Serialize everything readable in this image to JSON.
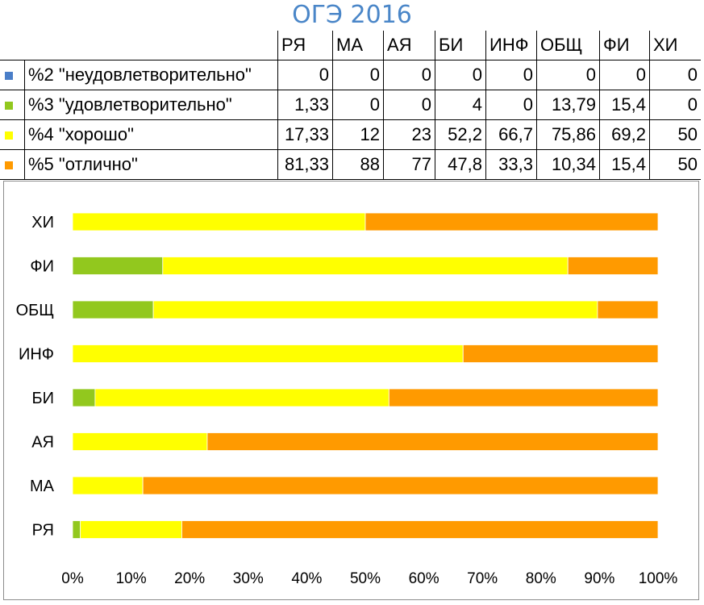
{
  "title": "ОГЭ 2016",
  "table": {
    "columns": [
      "РЯ",
      "МА",
      "АЯ",
      "БИ",
      "ИНФ",
      "ОБЩ",
      "ФИ",
      "ХИ"
    ],
    "rows": [
      {
        "label": "%2 \"неудовлетворительно\"",
        "color": "#4a7ec8",
        "cells": [
          "0",
          "0",
          "0",
          "0",
          "0",
          "0",
          "0",
          "0"
        ]
      },
      {
        "label": "%3 \"удовлетворительно\"",
        "color": "#92c81e",
        "cells": [
          "1,33",
          "0",
          "0",
          "4",
          "0",
          "13,79",
          "15,4",
          "0"
        ]
      },
      {
        "label": "%4 \"хорошо\"",
        "color": "#ffff00",
        "cells": [
          "17,33",
          "12",
          "23",
          "52,2",
          "66,7",
          "75,86",
          "69,2",
          "50"
        ]
      },
      {
        "label": "%5 \"отлично\"",
        "color": "#ff9a00",
        "cells": [
          "81,33",
          "88",
          "77",
          "47,8",
          "33,3",
          "10,34",
          "15,4",
          "50"
        ]
      }
    ]
  },
  "chart_data": {
    "type": "bar",
    "orientation": "horizontal",
    "stacked": "percent",
    "title": "ОГЭ 2016",
    "categories": [
      "РЯ",
      "МА",
      "АЯ",
      "БИ",
      "ИНФ",
      "ОБЩ",
      "ФИ",
      "ХИ"
    ],
    "series": [
      {
        "name": "%2 \"неудовлетворительно\"",
        "color": "#4a7ec8",
        "values": [
          0,
          0,
          0,
          0,
          0,
          0,
          0,
          0
        ]
      },
      {
        "name": "%3 \"удовлетворительно\"",
        "color": "#92c81e",
        "values": [
          1.33,
          0,
          0,
          4,
          0,
          13.79,
          15.4,
          0
        ]
      },
      {
        "name": "%4 \"хорошо\"",
        "color": "#ffff00",
        "values": [
          17.33,
          12,
          23,
          52.2,
          66.7,
          75.86,
          69.2,
          50
        ]
      },
      {
        "name": "%5 \"отлично\"",
        "color": "#ff9a00",
        "values": [
          81.33,
          88,
          77,
          47.8,
          33.3,
          10.34,
          15.4,
          50
        ]
      }
    ],
    "xlim": [
      0,
      100
    ],
    "x_ticks": [
      "0%",
      "10%",
      "20%",
      "30%",
      "40%",
      "50%",
      "60%",
      "70%",
      "80%",
      "90%",
      "100%"
    ],
    "grid": false,
    "legend": "table-above"
  }
}
